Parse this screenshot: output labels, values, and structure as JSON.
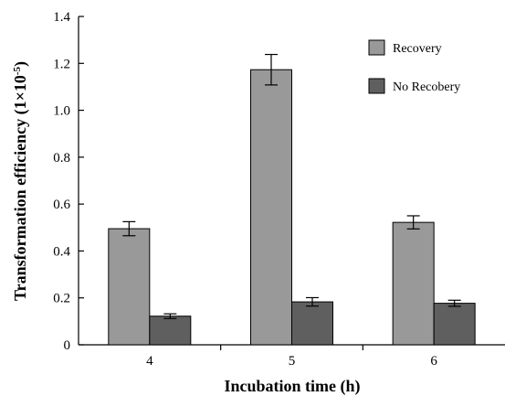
{
  "chart_data": {
    "type": "bar",
    "categories": [
      "4",
      "5",
      "6"
    ],
    "series": [
      {
        "name": "Recovery",
        "color": "#999999",
        "values": [
          0.495,
          1.173,
          0.522
        ],
        "errors": [
          0.03,
          0.065,
          0.028
        ]
      },
      {
        "name": "No Recobery",
        "color": "#5f5f5f",
        "values": [
          0.122,
          0.183,
          0.177
        ],
        "errors": [
          0.01,
          0.018,
          0.013
        ]
      }
    ],
    "title": "",
    "xlabel": "Incubation time (h)",
    "ylabel": "Transformation efficiency (1×10",
    "ylabel_exponent": "-5",
    "ylabel_suffix": ")",
    "ylim": [
      0,
      1.4
    ],
    "yticks": [
      "0",
      "0.2",
      "0.4",
      "0.6",
      "0.8",
      "1.0",
      "1.2",
      "1.4"
    ],
    "ytick_values": [
      0,
      0.2,
      0.4,
      0.6,
      0.8,
      1.0,
      1.2,
      1.4
    ],
    "grid": false,
    "legend_position": "top-right"
  }
}
